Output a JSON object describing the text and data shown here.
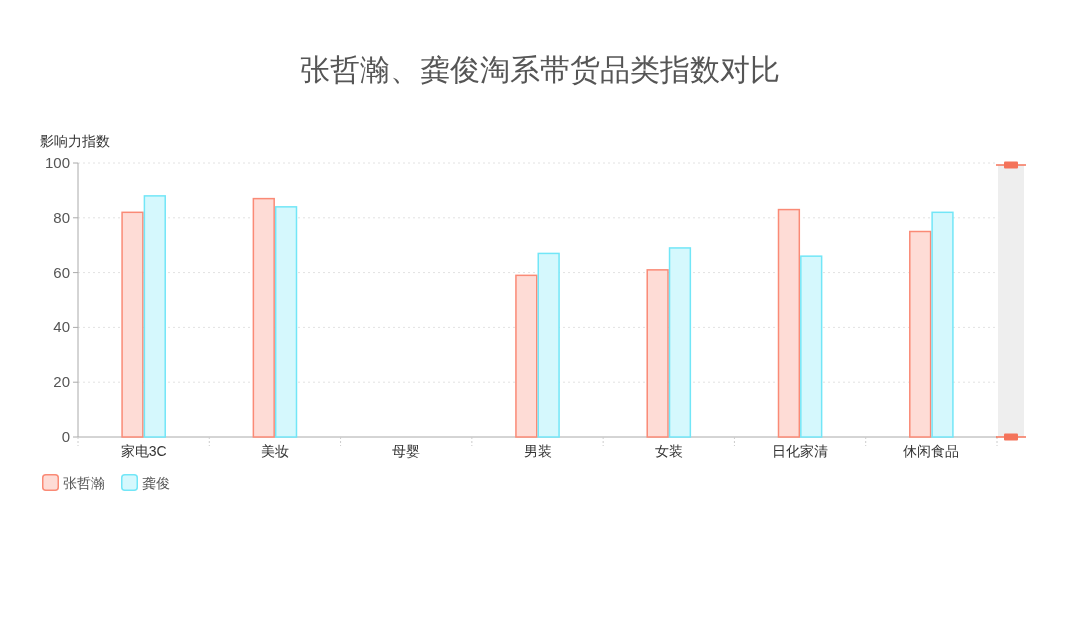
{
  "chart_data": {
    "type": "bar",
    "title": "张哲瀚、龚俊淘系带货品类指数对比",
    "ylabel": "影响力指数",
    "categories": [
      "家电3C",
      "美妆",
      "母婴",
      "男装",
      "女装",
      "日化家清",
      "休闲食品"
    ],
    "series": [
      {
        "name": "张哲瀚",
        "color": "#fa8a76",
        "values": [
          82,
          87,
          null,
          59,
          61,
          83,
          75
        ]
      },
      {
        "name": "龚俊",
        "color": "#72e6f7",
        "values": [
          88,
          84,
          null,
          67,
          69,
          66,
          82
        ]
      }
    ],
    "ylim": [
      0,
      100
    ],
    "yticks": [
      0,
      20,
      40,
      60,
      80,
      100
    ],
    "grid": "y",
    "legend": "bottom left"
  }
}
